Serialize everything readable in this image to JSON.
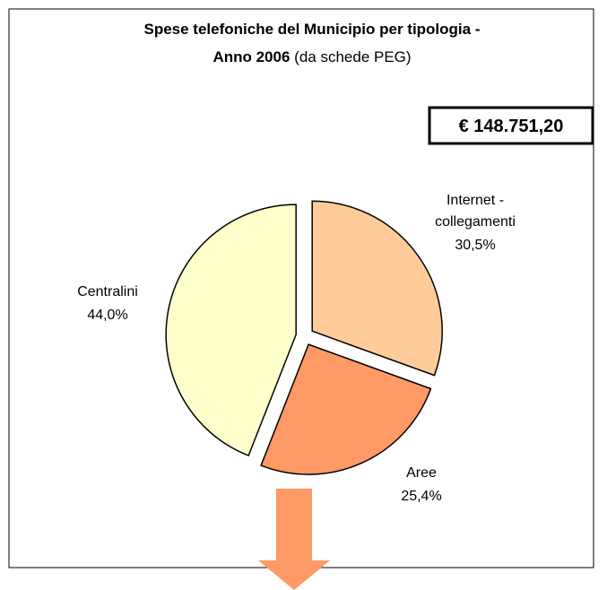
{
  "chart_data": {
    "type": "pie",
    "title": [
      "Spese telefoniche del Municipio per tipologia -",
      "Anno 2006"
    ],
    "subtitle": "(da schede PEG)",
    "annotation": "€ 148.751,20",
    "categories": [
      "Internet - collegamenti",
      "Aree",
      "Centralini"
    ],
    "values": [
      30.5,
      25.4,
      44.0
    ],
    "value_labels": [
      "30,5%",
      "25,4%",
      "44,0%"
    ],
    "colors": [
      "#ffcc99",
      "#ff9966",
      "#ffffcc"
    ]
  }
}
